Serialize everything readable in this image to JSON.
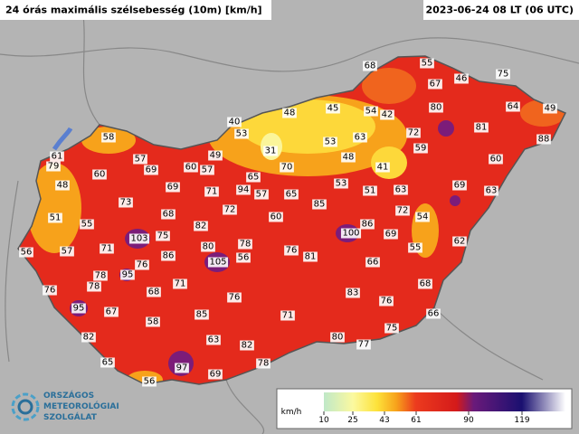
{
  "header": {
    "title": "24 órás maximális szélsebesség (10m) [km/h]",
    "date": "2023-06-24 08 LT (06 UTC)"
  },
  "stations": [
    68,
    55,
    67,
    46,
    75,
    48,
    45,
    54,
    42,
    80,
    72,
    81,
    64,
    49,
    88,
    40,
    53,
    31,
    53,
    63,
    59,
    48,
    41,
    60,
    58,
    61,
    79,
    57,
    69,
    60,
    57,
    49,
    65,
    70,
    60,
    48,
    69,
    71,
    94,
    57,
    65,
    53,
    51,
    63,
    69,
    63,
    73,
    85,
    72,
    68,
    60,
    72,
    54,
    51,
    55,
    82,
    86,
    100,
    69,
    62,
    103,
    75,
    80,
    78,
    76,
    81,
    55,
    56,
    57,
    71,
    86,
    105,
    56,
    66,
    76,
    78,
    95,
    78,
    71,
    68,
    76,
    76,
    83,
    76,
    68,
    95,
    67,
    85,
    71,
    66,
    58,
    75,
    82,
    63,
    82,
    80,
    77,
    65,
    78,
    97,
    69,
    56
  ],
  "legend": {
    "unit": "km/h",
    "ticks": [
      10,
      25,
      43,
      61,
      90,
      119
    ]
  },
  "logo": {
    "line1": "ORSZÁGOS",
    "line2": "METEOROLÓGIAI",
    "line3": "SZOLGÁLAT"
  }
}
